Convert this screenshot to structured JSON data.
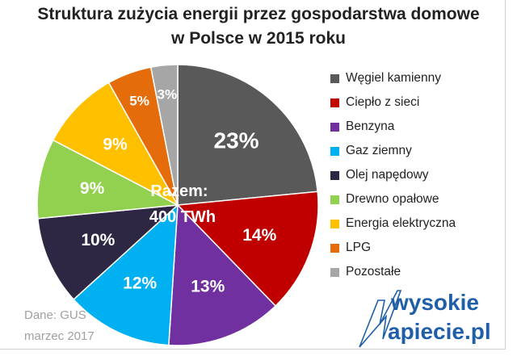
{
  "chart_data": {
    "type": "pie",
    "title": [
      "Struktura zużycia energii przez gospodarstwa domowe",
      "w Polsce w 2015 roku"
    ],
    "center_label": [
      "Razem:",
      "400 TWh"
    ],
    "start": "12 o'clock, clockwise",
    "slices": [
      {
        "label": "Węgiel kamienny",
        "value": 23,
        "text": "23%",
        "color": "#595959"
      },
      {
        "label": "Ciepło z sieci",
        "value": 14,
        "text": "14%",
        "color": "#c00000"
      },
      {
        "label": "Benzyna",
        "value": 13,
        "text": "13%",
        "color": "#7030a0"
      },
      {
        "label": "Gaz ziemny",
        "value": 12,
        "text": "12%",
        "color": "#00b0f0"
      },
      {
        "label": "Olej napędowy",
        "value": 10,
        "text": "10%",
        "color": "#2e2744"
      },
      {
        "label": "Drewno opałowe",
        "value": 9,
        "text": "9%",
        "color": "#92d050"
      },
      {
        "label": "Energia elektryczna",
        "value": 9,
        "text": "9%",
        "color": "#ffc000"
      },
      {
        "label": "LPG",
        "value": 5,
        "text": "5%",
        "color": "#e46c0a"
      },
      {
        "label": "Pozostałe",
        "value": 3,
        "text": "3%",
        "color": "#a6a6a6"
      }
    ],
    "legend_position": "right"
  },
  "source": [
    "Dane: GUS",
    "marzec 2017"
  ],
  "logo": [
    "wysokie",
    "Napiecie.pl"
  ]
}
